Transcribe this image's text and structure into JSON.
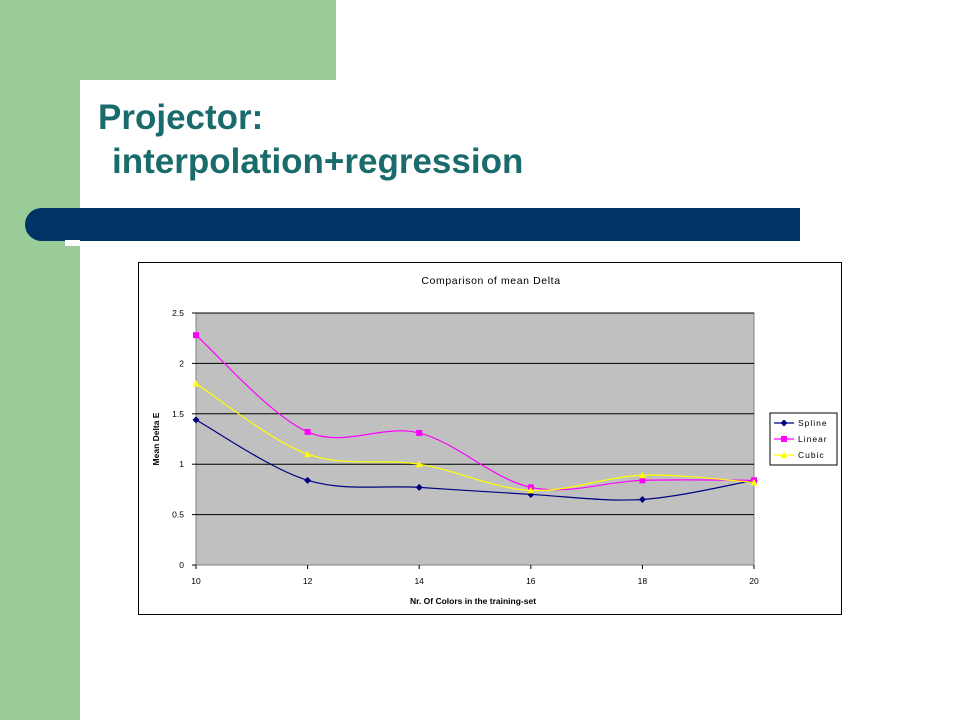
{
  "slide": {
    "title_line1": "Projector:",
    "title_line2": "interpolation+regression",
    "colors": {
      "side_band": "#99cc99",
      "title_text": "#1a6b6b",
      "divider_bar": "#003366"
    }
  },
  "chart_data": {
    "type": "line",
    "title": "Comparison of mean Delta",
    "xlabel": "Nr. Of Colors in the training-set",
    "ylabel": "Mean Delta E",
    "x": [
      10,
      12,
      14,
      16,
      18,
      20
    ],
    "x_ticks": [
      "10",
      "12",
      "14",
      "16",
      "18",
      "20"
    ],
    "y_ticks": [
      "0",
      "0.5",
      "1",
      "1.5",
      "2",
      "2.5"
    ],
    "ylim": [
      0,
      2.5
    ],
    "grid": true,
    "plot_background": "#c0c0c0",
    "legend_position": "right",
    "smoothed": true,
    "series": [
      {
        "name": "Spline",
        "values": [
          1.44,
          0.84,
          0.77,
          0.7,
          0.65,
          0.84
        ],
        "color": "#000080",
        "marker": "diamond"
      },
      {
        "name": "Linear",
        "values": [
          2.28,
          1.32,
          1.31,
          0.77,
          0.84,
          0.84
        ],
        "color": "#ff00ff",
        "marker": "square"
      },
      {
        "name": "Cubic",
        "values": [
          1.8,
          1.1,
          1.0,
          0.74,
          0.89,
          0.82
        ],
        "color": "#ffff00",
        "marker": "triangle"
      }
    ]
  }
}
